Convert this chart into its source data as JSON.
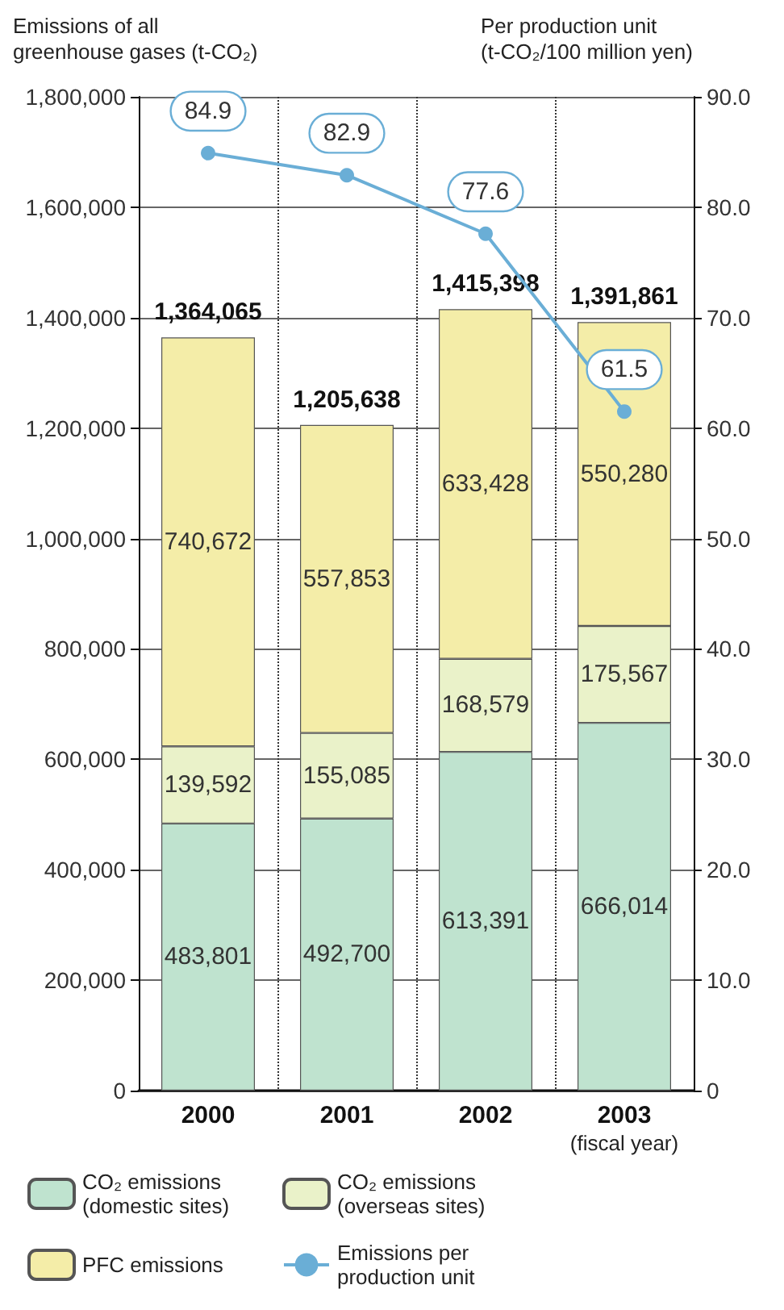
{
  "chart_data": {
    "type": "bar",
    "stacked": true,
    "categories": [
      "2000",
      "2001",
      "2002",
      "2003"
    ],
    "xlabel": "(fiscal year)",
    "ylabel": "Emissions of all greenhouse gases (t-CO₂)",
    "y2label": "Per production unit (t-CO₂/100 million yen)",
    "ylim": [
      0,
      1800000
    ],
    "yticks": [
      {
        "value": 0,
        "label": "0"
      },
      {
        "value": 200000,
        "label": "200,000"
      },
      {
        "value": 400000,
        "label": "400,000"
      },
      {
        "value": 600000,
        "label": "600,000"
      },
      {
        "value": 800000,
        "label": "800,000"
      },
      {
        "value": 1000000,
        "label": "1,000,000"
      },
      {
        "value": 1200000,
        "label": "1,200,000"
      },
      {
        "value": 1400000,
        "label": "1,400,000"
      },
      {
        "value": 1600000,
        "label": "1,600,000"
      },
      {
        "value": 1800000,
        "label": "1,800,000"
      }
    ],
    "y2lim": [
      0,
      90
    ],
    "y2ticks": [
      {
        "value": 0,
        "label": "0"
      },
      {
        "value": 10,
        "label": "10.0"
      },
      {
        "value": 20,
        "label": "20.0"
      },
      {
        "value": 30,
        "label": "30.0"
      },
      {
        "value": 40,
        "label": "40.0"
      },
      {
        "value": 50,
        "label": "50.0"
      },
      {
        "value": 60,
        "label": "60.0"
      },
      {
        "value": 70,
        "label": "70.0"
      },
      {
        "value": 80,
        "label": "80.0"
      },
      {
        "value": 90,
        "label": "90.0"
      }
    ],
    "series": [
      {
        "name": "CO₂ emissions (domestic sites)",
        "color": "#bfe3cf",
        "values": [
          483801,
          492700,
          613391,
          666014
        ],
        "value_labels": [
          "483,801",
          "492,700",
          "613,391",
          "666,014"
        ]
      },
      {
        "name": "CO₂ emissions (overseas sites)",
        "color": "#eaf2c9",
        "values": [
          139592,
          155085,
          168579,
          175567
        ],
        "value_labels": [
          "139,592",
          "155,085",
          "168,579",
          "175,567"
        ]
      },
      {
        "name": "PFC emissions",
        "color": "#f4eda8",
        "values": [
          740672,
          557853,
          633428,
          550280
        ],
        "value_labels": [
          "740,672",
          "557,853",
          "633,428",
          "550,280"
        ]
      },
      {
        "name": "Emissions per production unit",
        "type": "line",
        "axis": "y2",
        "color": "#6aaed6",
        "marker": "circle",
        "line_style": "solid",
        "values": [
          84.9,
          82.9,
          77.6,
          61.5
        ],
        "value_labels": [
          "84.9",
          "82.9",
          "77.6",
          "61.5"
        ]
      }
    ],
    "totals": [
      "1,364,065",
      "1,205,638",
      "1,415,398",
      "1,391,861"
    ],
    "grid": true,
    "legend": "bottom"
  }
}
